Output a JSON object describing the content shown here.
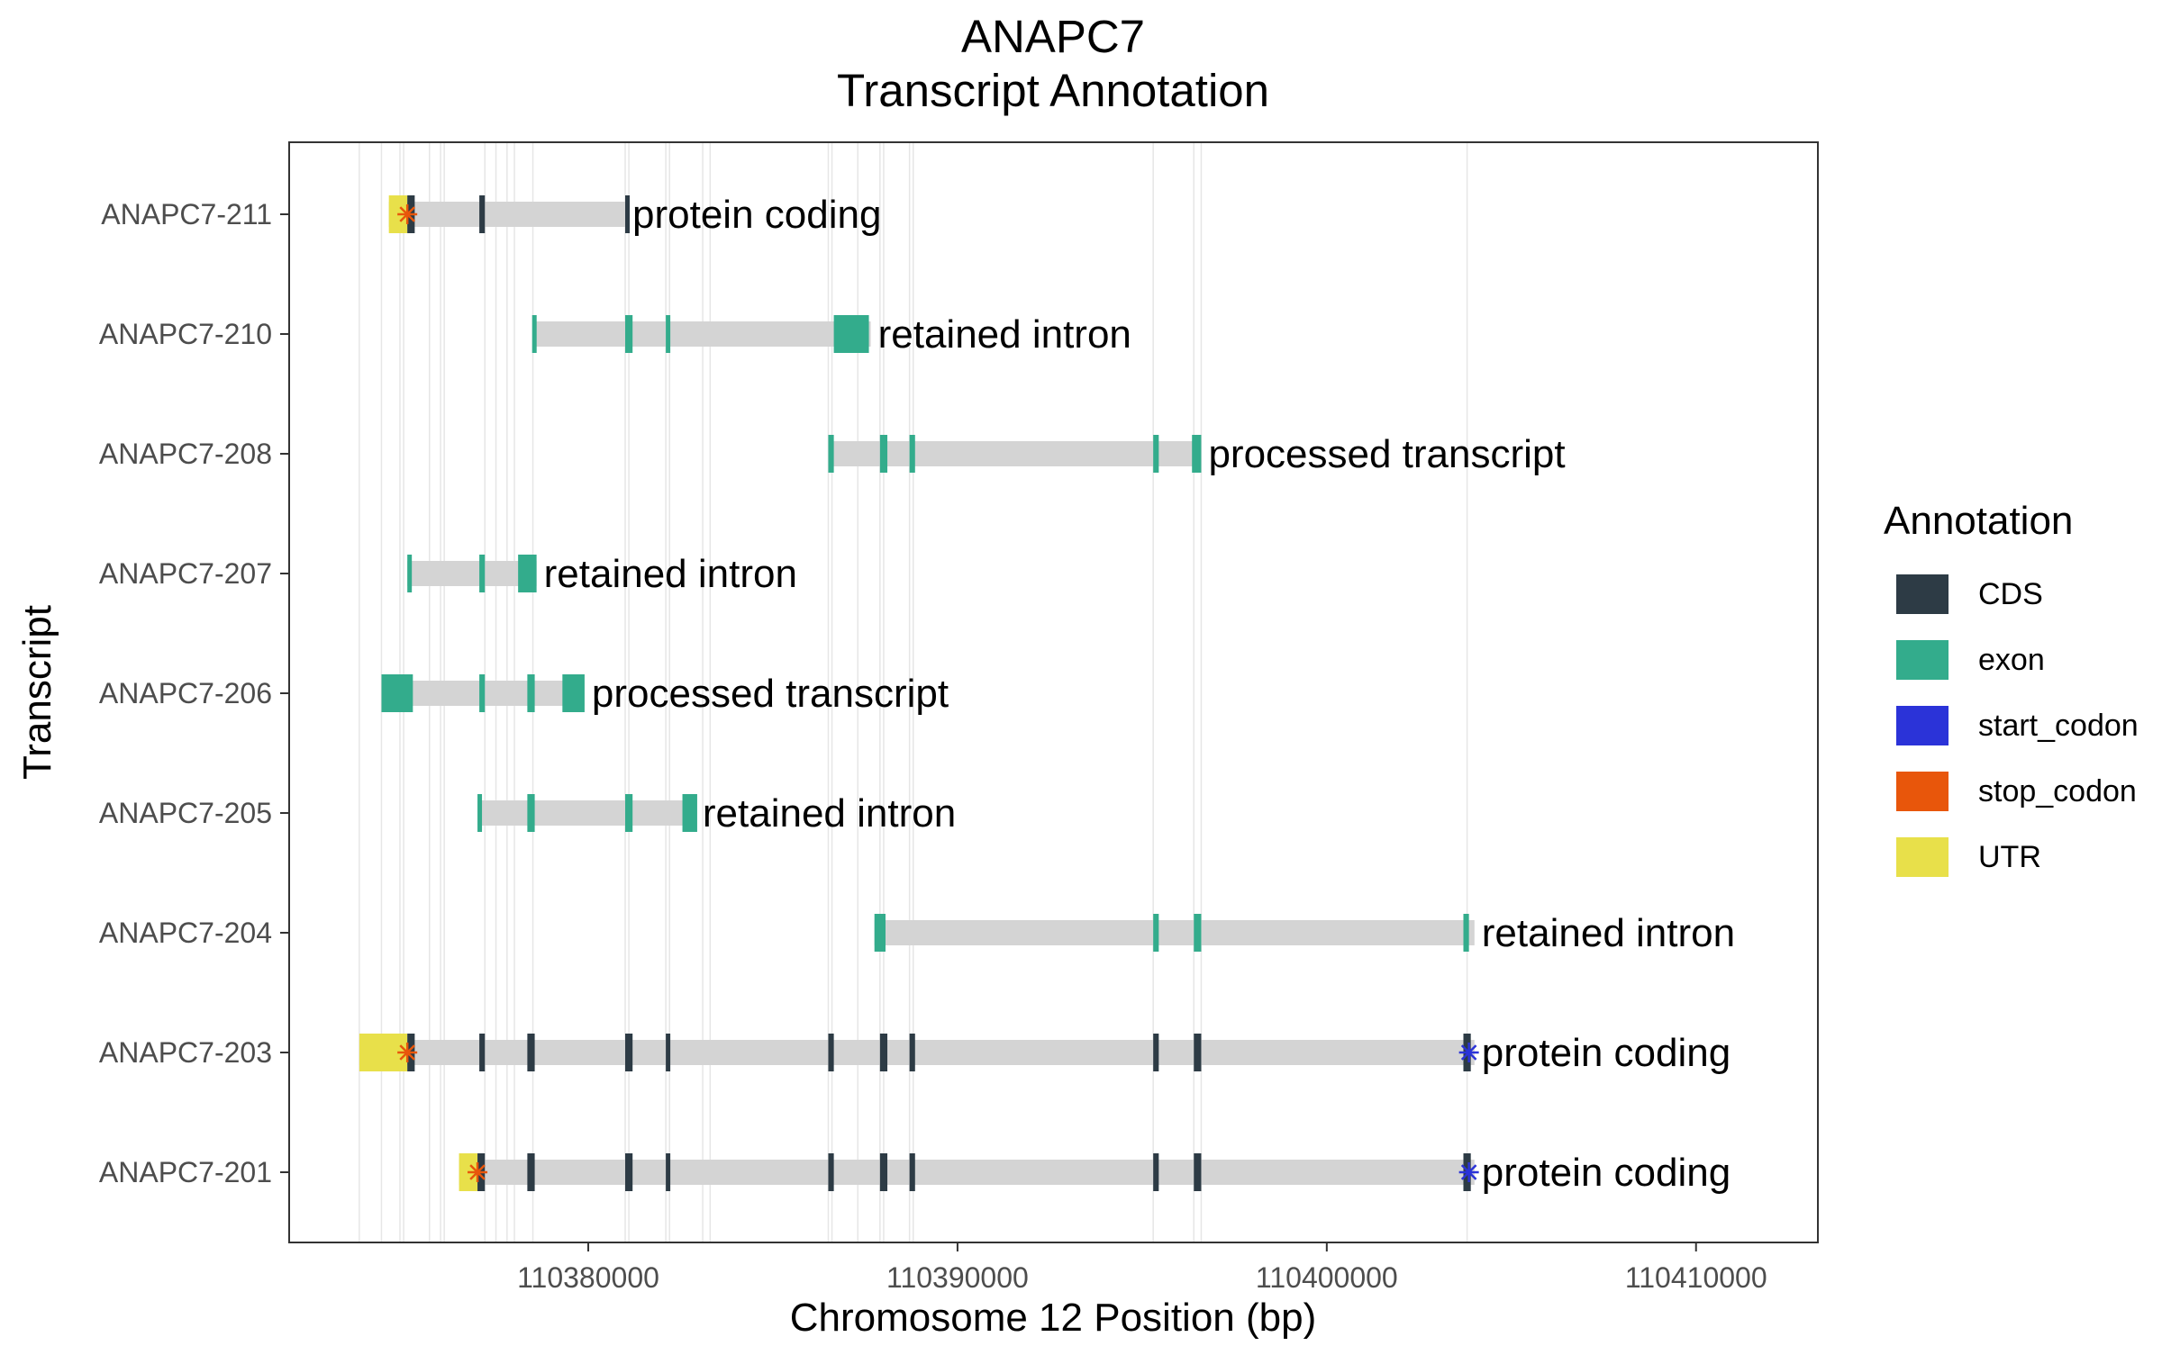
{
  "chart_data": {
    "type": "gene_track",
    "title": [
      "ANAPC7",
      "Transcript Annotation"
    ],
    "xlabel": "Chromosome 12 Position (bp)",
    "ylabel": "Transcript",
    "xlim": [
      110371900,
      110413300
    ],
    "x_ticks": [
      110380000,
      110390000,
      110400000,
      110410000
    ],
    "x_tick_labels": [
      "110380000",
      "110390000",
      "110400000",
      "110410000"
    ],
    "grid": "vertical lines at exon boundaries",
    "legend": {
      "title": "Annotation",
      "placement": "right",
      "items": [
        {
          "key": "CDS",
          "label": "CDS",
          "color": "#2d3b45"
        },
        {
          "key": "exon",
          "label": "exon",
          "color": "#33ac8c"
        },
        {
          "key": "start_codon",
          "label": "start_codon",
          "color": "#2b33d8"
        },
        {
          "key": "stop_codon",
          "label": "stop_codon",
          "color": "#e8560b"
        },
        {
          "key": "UTR",
          "label": "UTR",
          "color": "#e8e04a"
        }
      ]
    },
    "colors": {
      "CDS": "#2d3b45",
      "exon": "#33ac8c",
      "start_codon": "#2b33d8",
      "stop_codon": "#e8560b",
      "UTR": "#e8e04a",
      "intron": "#d4d4d4",
      "grid": "#e6e6e6"
    },
    "grid_positions": [
      110373800,
      110374400,
      110374900,
      110375000,
      110375700,
      110376000,
      110376100,
      110377200,
      110377500,
      110377800,
      110378000,
      110378500,
      110381000,
      110381100,
      110382100,
      110382200,
      110383100,
      110383300,
      110386500,
      110386600,
      110387300,
      110387900,
      110388000,
      110388700,
      110388800,
      110395300,
      110396400,
      110396600,
      110403800
    ],
    "transcripts": [
      {
        "name": "ANAPC7-211",
        "biotype": "protein coding",
        "start": 110374600,
        "end": 110381000,
        "features": [
          {
            "type": "UTR",
            "start": 110374600,
            "end": 110375100
          },
          {
            "type": "CDS",
            "start": 110375100,
            "end": 110375300
          },
          {
            "type": "CDS",
            "start": 110377050,
            "end": 110377200
          },
          {
            "type": "CDS",
            "start": 110381000,
            "end": 110381080
          },
          {
            "type": "stop_codon",
            "start": 110375050,
            "end": 110375150
          }
        ]
      },
      {
        "name": "ANAPC7-210",
        "biotype": "retained intron",
        "start": 110378500,
        "end": 110387650,
        "features": [
          {
            "type": "exon",
            "start": 110378480,
            "end": 110378550
          },
          {
            "type": "exon",
            "start": 110381000,
            "end": 110381200
          },
          {
            "type": "exon",
            "start": 110382100,
            "end": 110382200
          },
          {
            "type": "exon",
            "start": 110386650,
            "end": 110387600
          }
        ]
      },
      {
        "name": "ANAPC7-208",
        "biotype": "processed transcript",
        "start": 110386500,
        "end": 110396600,
        "features": [
          {
            "type": "exon",
            "start": 110386500,
            "end": 110386650
          },
          {
            "type": "exon",
            "start": 110387900,
            "end": 110388100
          },
          {
            "type": "exon",
            "start": 110388700,
            "end": 110388850
          },
          {
            "type": "exon",
            "start": 110395300,
            "end": 110395450
          },
          {
            "type": "exon",
            "start": 110396350,
            "end": 110396600
          }
        ]
      },
      {
        "name": "ANAPC7-207",
        "biotype": "retained intron",
        "start": 110375100,
        "end": 110378600,
        "features": [
          {
            "type": "exon",
            "start": 110375100,
            "end": 110375220
          },
          {
            "type": "exon",
            "start": 110377050,
            "end": 110377200
          },
          {
            "type": "exon",
            "start": 110378100,
            "end": 110378600
          }
        ]
      },
      {
        "name": "ANAPC7-206",
        "biotype": "processed transcript",
        "start": 110374400,
        "end": 110379900,
        "features": [
          {
            "type": "exon",
            "start": 110374400,
            "end": 110375250
          },
          {
            "type": "exon",
            "start": 110377050,
            "end": 110377200
          },
          {
            "type": "exon",
            "start": 110378350,
            "end": 110378550
          },
          {
            "type": "exon",
            "start": 110379300,
            "end": 110379900
          }
        ]
      },
      {
        "name": "ANAPC7-205",
        "biotype": "retained intron",
        "start": 110377000,
        "end": 110382900,
        "features": [
          {
            "type": "exon",
            "start": 110377000,
            "end": 110377100
          },
          {
            "type": "exon",
            "start": 110378350,
            "end": 110378550
          },
          {
            "type": "exon",
            "start": 110381000,
            "end": 110381200
          },
          {
            "type": "exon",
            "start": 110382550,
            "end": 110382950
          }
        ]
      },
      {
        "name": "ANAPC7-204",
        "biotype": "retained intron",
        "start": 110387750,
        "end": 110404000,
        "features": [
          {
            "type": "exon",
            "start": 110387750,
            "end": 110388050
          },
          {
            "type": "exon",
            "start": 110395300,
            "end": 110395450
          },
          {
            "type": "exon",
            "start": 110396400,
            "end": 110396600
          },
          {
            "type": "exon",
            "start": 110403700,
            "end": 110403850
          }
        ]
      },
      {
        "name": "ANAPC7-203",
        "biotype": "protein coding",
        "start": 110373800,
        "end": 110404000,
        "features": [
          {
            "type": "UTR",
            "start": 110373800,
            "end": 110375100
          },
          {
            "type": "CDS",
            "start": 110375100,
            "end": 110375300
          },
          {
            "type": "CDS",
            "start": 110377050,
            "end": 110377200
          },
          {
            "type": "CDS",
            "start": 110378350,
            "end": 110378550
          },
          {
            "type": "CDS",
            "start": 110381000,
            "end": 110381200
          },
          {
            "type": "CDS",
            "start": 110382100,
            "end": 110382200
          },
          {
            "type": "CDS",
            "start": 110386500,
            "end": 110386650
          },
          {
            "type": "CDS",
            "start": 110387900,
            "end": 110388100
          },
          {
            "type": "CDS",
            "start": 110388700,
            "end": 110388850
          },
          {
            "type": "CDS",
            "start": 110395300,
            "end": 110395450
          },
          {
            "type": "CDS",
            "start": 110396400,
            "end": 110396600
          },
          {
            "type": "CDS",
            "start": 110403700,
            "end": 110403900
          },
          {
            "type": "stop_codon",
            "start": 110375050,
            "end": 110375150
          },
          {
            "type": "start_codon",
            "start": 110403800,
            "end": 110403900
          }
        ]
      },
      {
        "name": "ANAPC7-201",
        "biotype": "protein coding",
        "start": 110376500,
        "end": 110404000,
        "features": [
          {
            "type": "UTR",
            "start": 110376500,
            "end": 110377000
          },
          {
            "type": "CDS",
            "start": 110377000,
            "end": 110377200
          },
          {
            "type": "CDS",
            "start": 110378350,
            "end": 110378550
          },
          {
            "type": "CDS",
            "start": 110381000,
            "end": 110381200
          },
          {
            "type": "CDS",
            "start": 110382100,
            "end": 110382200
          },
          {
            "type": "CDS",
            "start": 110386500,
            "end": 110386650
          },
          {
            "type": "CDS",
            "start": 110387900,
            "end": 110388100
          },
          {
            "type": "CDS",
            "start": 110388700,
            "end": 110388850
          },
          {
            "type": "CDS",
            "start": 110395300,
            "end": 110395450
          },
          {
            "type": "CDS",
            "start": 110396400,
            "end": 110396600
          },
          {
            "type": "CDS",
            "start": 110403700,
            "end": 110403900
          },
          {
            "type": "stop_codon",
            "start": 110376950,
            "end": 110377050
          },
          {
            "type": "start_codon",
            "start": 110403800,
            "end": 110403900
          }
        ]
      }
    ]
  }
}
